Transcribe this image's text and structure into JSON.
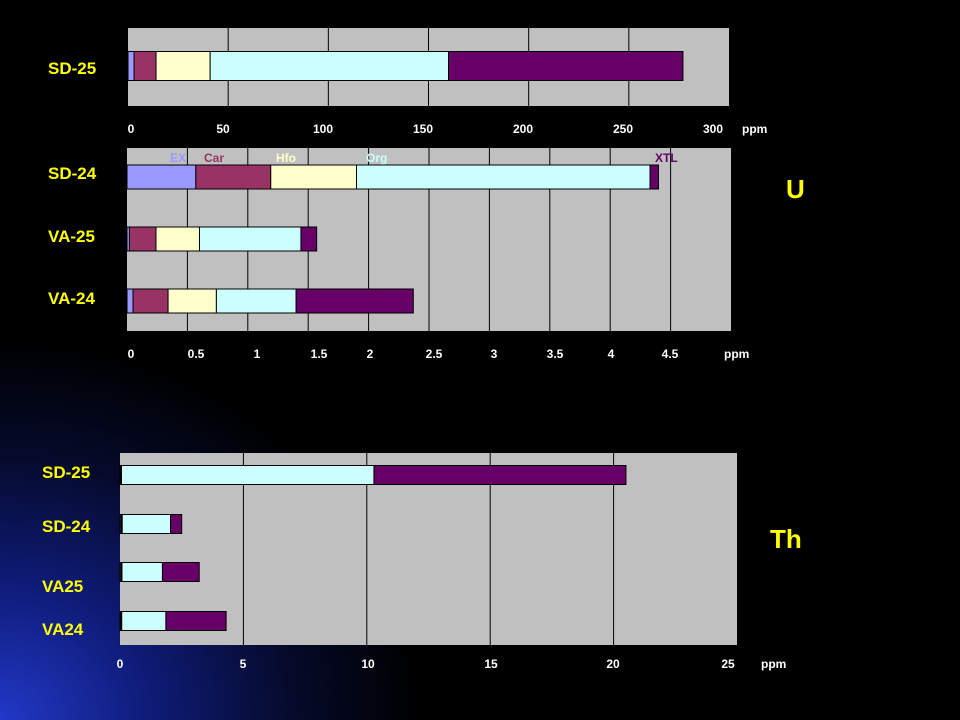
{
  "colors": {
    "background": "#000000",
    "plot_area": "#c0c0c0",
    "axis_text": "#ffffff",
    "sample_label": "#ffff00",
    "element_label": "#ffff00",
    "EX": "#9999ff",
    "Car": "#993366",
    "Hfo": "#ffffcc",
    "Org": "#ccffff",
    "XTL": "#660066"
  },
  "element_labels": {
    "uranium": "U",
    "thorium": "Th"
  },
  "chart_data": [
    {
      "type": "bar",
      "orientation": "horizontal",
      "stacked": true,
      "categories": [
        "SD-25"
      ],
      "series": [
        {
          "name": "EX",
          "values": [
            3
          ]
        },
        {
          "name": "Car",
          "values": [
            11
          ]
        },
        {
          "name": "Hfo",
          "values": [
            27
          ]
        },
        {
          "name": "Org",
          "values": [
            119
          ]
        },
        {
          "name": "XTL",
          "values": [
            117
          ]
        }
      ],
      "xlim": [
        0,
        300
      ],
      "xticks": [
        "0",
        "50",
        "100",
        "150",
        "200",
        "250",
        "300"
      ],
      "unit": "ppm",
      "grid": true,
      "legend": "none"
    },
    {
      "type": "bar",
      "orientation": "horizontal",
      "stacked": true,
      "categories": [
        "SD-24",
        "VA-25",
        "VA-24"
      ],
      "series": [
        {
          "name": "EX",
          "values": [
            0.57,
            0.02,
            0.05
          ]
        },
        {
          "name": "Car",
          "values": [
            0.62,
            0.22,
            0.29
          ]
        },
        {
          "name": "Hfo",
          "values": [
            0.71,
            0.36,
            0.4
          ]
        },
        {
          "name": "Org",
          "values": [
            2.43,
            0.84,
            0.66
          ]
        },
        {
          "name": "XTL",
          "values": [
            0.07,
            0.13,
            0.97
          ]
        }
      ],
      "xlim": [
        0,
        5
      ],
      "xticks": [
        "0",
        "0.5",
        "1",
        "1.5",
        "2",
        "2.5",
        "3",
        "3.5",
        "4",
        "4.5"
      ],
      "unit": "ppm",
      "grid": true,
      "legend": "top"
    },
    {
      "type": "bar",
      "orientation": "horizontal",
      "stacked": true,
      "categories": [
        "SD-25",
        "SD-24",
        "VA25",
        "VA24"
      ],
      "series": [
        {
          "name": "EX",
          "values": [
            0.01,
            0.01,
            0.01,
            0.01
          ]
        },
        {
          "name": "Car",
          "values": [
            0.03,
            0.05,
            0.05,
            0.04
          ]
        },
        {
          "name": "Hfo",
          "values": [
            0.02,
            0.03,
            0.02,
            0.02
          ]
        },
        {
          "name": "Org",
          "values": [
            10.23,
            1.96,
            1.64,
            1.79
          ]
        },
        {
          "name": "XTL",
          "values": [
            10.21,
            0.45,
            1.49,
            2.44
          ]
        }
      ],
      "xlim": [
        0,
        25
      ],
      "xticks": [
        "0",
        "5",
        "10",
        "15",
        "20",
        "25"
      ],
      "unit": "ppm",
      "grid": true,
      "legend": "none"
    }
  ]
}
